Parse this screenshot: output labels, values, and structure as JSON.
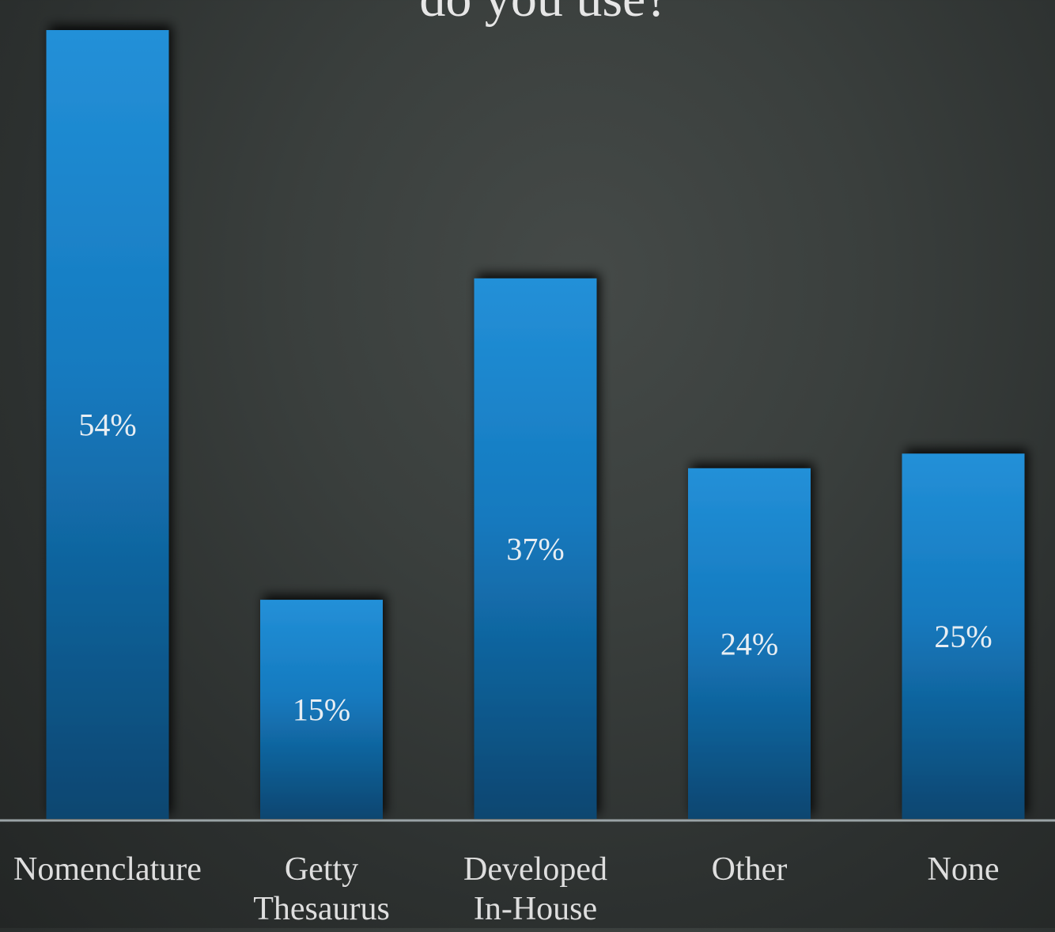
{
  "chart_data": {
    "type": "bar",
    "title": "do you use?",
    "categories": [
      "Nomenclature",
      "Getty Thesaurus",
      "Developed In-House",
      "Other",
      "None"
    ],
    "category_lines": [
      [
        "Nomenclature"
      ],
      [
        "Getty",
        "Thesaurus"
      ],
      [
        "Developed",
        "In-House"
      ],
      [
        "Other"
      ],
      [
        "None"
      ]
    ],
    "values": [
      54,
      15,
      37,
      24,
      25
    ],
    "value_labels": [
      "54%",
      "15%",
      "37%",
      "24%",
      "25%"
    ],
    "ylim": [
      0,
      54
    ],
    "grid": false,
    "legend": "none",
    "colors": {
      "bar_top": "#2390d8",
      "bar_bottom": "#0c4670",
      "axis": "#9aa3a6"
    }
  }
}
